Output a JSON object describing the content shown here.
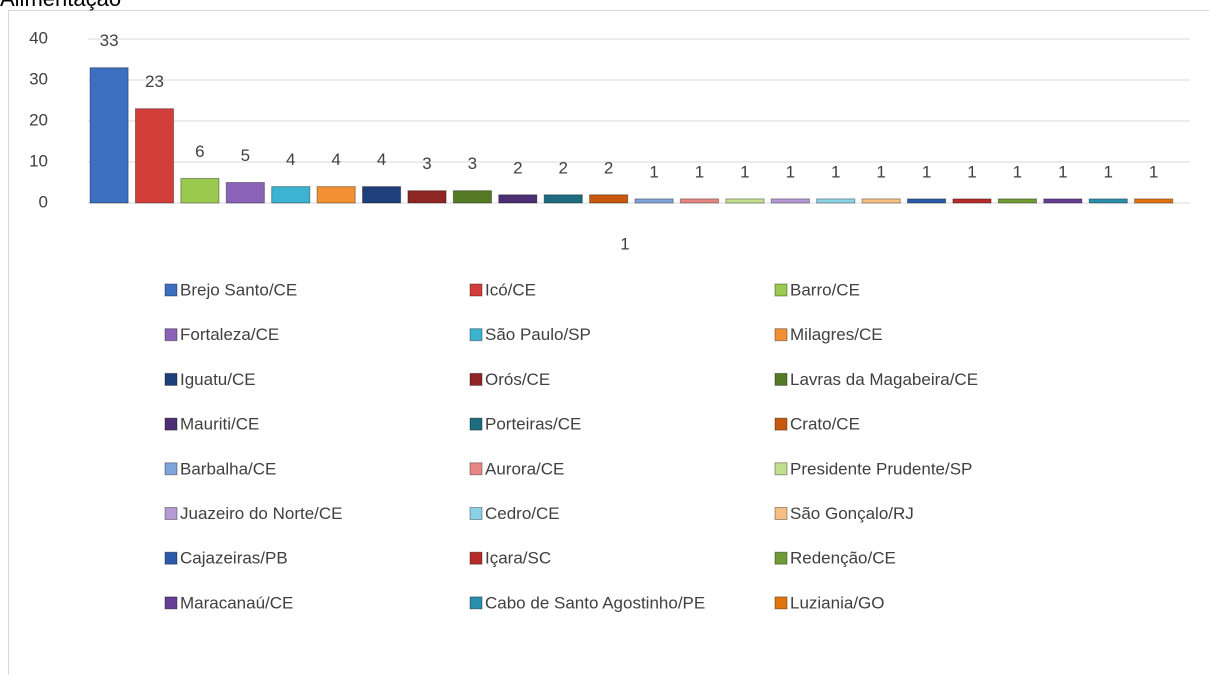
{
  "chart_data": {
    "type": "bar",
    "title": "Alimentação",
    "categories": [
      "1"
    ],
    "ylim": [
      0,
      40
    ],
    "yticks": [
      0,
      10,
      20,
      30,
      40
    ],
    "grid": true,
    "series": [
      {
        "name": "Brejo Santo/CE",
        "color": "#3d6fc0",
        "values": [
          33
        ]
      },
      {
        "name": "Icó/CE",
        "color": "#d23f3b",
        "values": [
          23
        ]
      },
      {
        "name": "Barro/CE",
        "color": "#9bc94f",
        "values": [
          6
        ]
      },
      {
        "name": "Fortaleza/CE",
        "color": "#8a62b8",
        "values": [
          5
        ]
      },
      {
        "name": "São Paulo/SP",
        "color": "#3cb3d0",
        "values": [
          4
        ]
      },
      {
        "name": "Milagres/CE",
        "color": "#f39033",
        "values": [
          4
        ]
      },
      {
        "name": "Iguatu/CE",
        "color": "#1f3f7a",
        "values": [
          4
        ]
      },
      {
        "name": "Orós/CE",
        "color": "#8e2624",
        "values": [
          3
        ]
      },
      {
        "name": "Lavras da Magabeira/CE",
        "color": "#557a25",
        "values": [
          3
        ]
      },
      {
        "name": "Mauriti/CE",
        "color": "#4c2f70",
        "values": [
          2
        ]
      },
      {
        "name": "Porteiras/CE",
        "color": "#1e6c80",
        "values": [
          2
        ]
      },
      {
        "name": "Crato/CE",
        "color": "#c8580c",
        "values": [
          2
        ]
      },
      {
        "name": "Barbalha/CE",
        "color": "#7fa4dc",
        "values": [
          1
        ]
      },
      {
        "name": "Aurora/CE",
        "color": "#e88683",
        "values": [
          1
        ]
      },
      {
        "name": "Presidente Prudente/SP",
        "color": "#c2df90",
        "values": [
          1
        ]
      },
      {
        "name": "Juazeiro do Norte/CE",
        "color": "#b59ad6",
        "values": [
          1
        ]
      },
      {
        "name": "Cedro/CE",
        "color": "#8ad3e6",
        "values": [
          1
        ]
      },
      {
        "name": "São Gonçalo/RJ",
        "color": "#f8bf84",
        "values": [
          1
        ]
      },
      {
        "name": "Cajazeiras/PB",
        "color": "#2c5aa8",
        "values": [
          1
        ]
      },
      {
        "name": "Içara/SC",
        "color": "#b52c29",
        "values": [
          1
        ]
      },
      {
        "name": "Redenção/CE",
        "color": "#6f9c34",
        "values": [
          1
        ]
      },
      {
        "name": "Maracanaú/CE",
        "color": "#653f93",
        "values": [
          1
        ]
      },
      {
        "name": "Cabo de Santo Agostinho/PE",
        "color": "#2890ac",
        "values": [
          1
        ]
      },
      {
        "name": "Luziania/GO",
        "color": "#e2740f",
        "values": [
          1
        ]
      }
    ]
  }
}
